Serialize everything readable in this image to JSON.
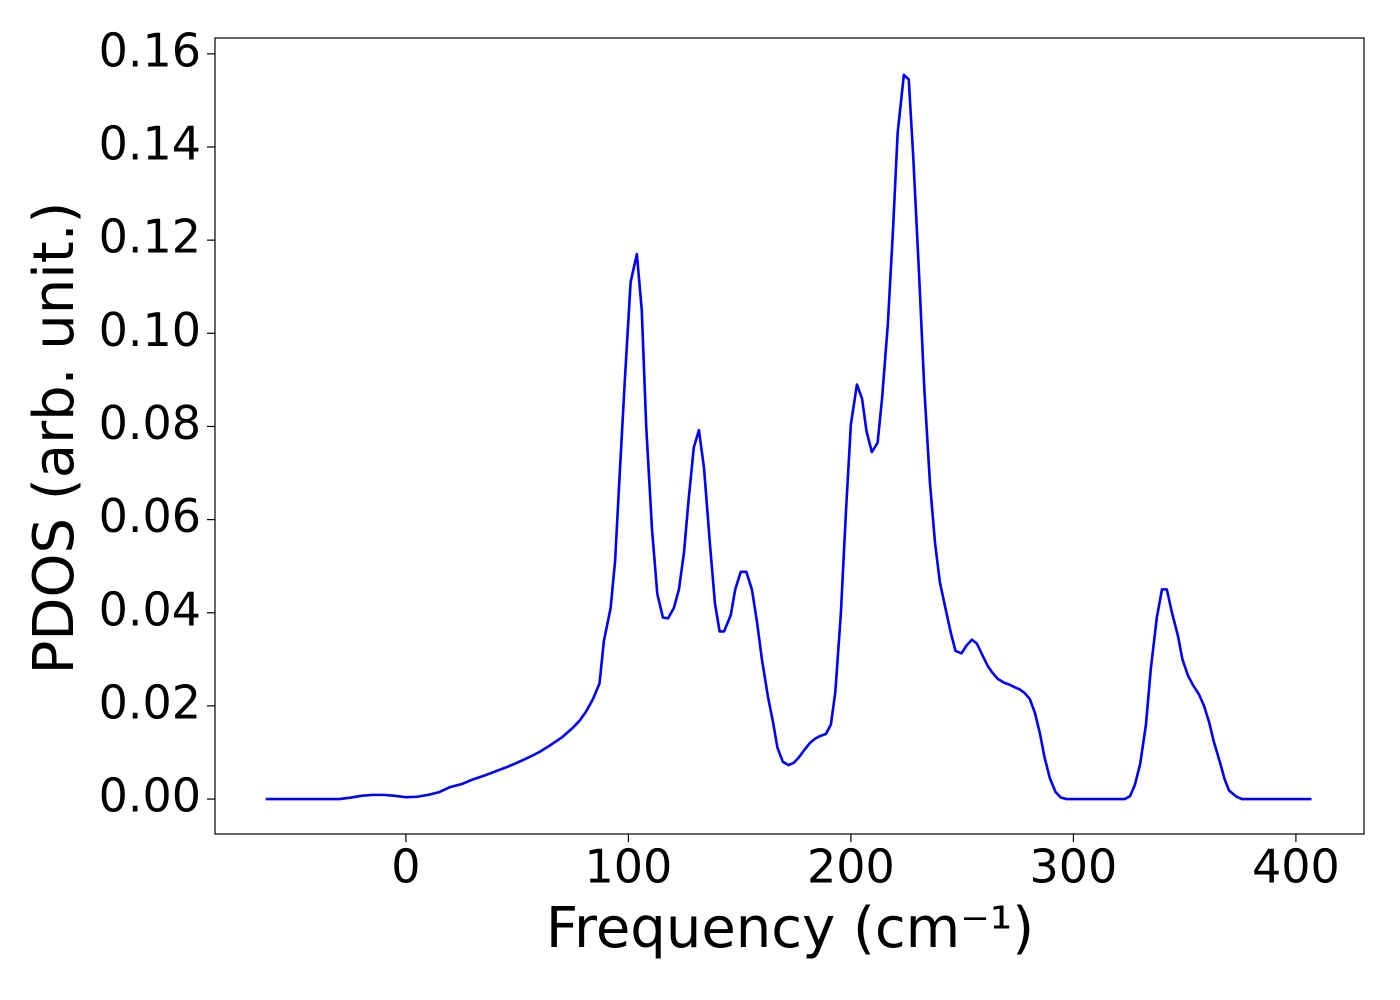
{
  "chart_data": {
    "type": "line",
    "xlabel": "Frequency (cm⁻¹)",
    "ylabel": "PDOS (arb. unit.)",
    "xlim": [
      -85.8,
      430.6
    ],
    "ylim": [
      -0.0075,
      0.1634
    ],
    "xticks": [
      0,
      100,
      200,
      300,
      400
    ],
    "yticks": [
      {
        "value": 0,
        "label": "0.00"
      },
      {
        "value": 0.02,
        "label": "0.02"
      },
      {
        "value": 0.04,
        "label": "0.04"
      },
      {
        "value": 0.06,
        "label": "0.06"
      },
      {
        "value": 0.08,
        "label": "0.08"
      },
      {
        "value": 0.1,
        "label": "0.10"
      },
      {
        "value": 0.12,
        "label": "0.12"
      },
      {
        "value": 0.14,
        "label": "0.14"
      },
      {
        "value": 0.16,
        "label": "0.16"
      }
    ],
    "grid": false,
    "series": [
      {
        "color": "#0000ff",
        "x": [
          -63,
          -30,
          -25,
          -20,
          -15,
          -10,
          -5,
          0,
          5,
          10,
          15,
          20,
          25,
          30,
          35,
          40,
          45,
          50,
          55,
          60,
          65,
          70,
          75,
          78,
          81,
          84,
          87,
          89,
          92,
          94,
          96,
          98.4,
          101,
          103.8,
          106,
          108,
          110.6,
          113,
          115.5,
          117.8,
          120.4,
          122.7,
          125,
          127,
          129.4,
          131.7,
          134,
          136.6,
          138.9,
          141,
          143,
          146,
          148,
          150.5,
          153,
          155.5,
          157.8,
          160,
          162.7,
          165,
          167,
          169.4,
          172,
          174.4,
          176.7,
          179,
          181.5,
          184,
          186,
          188.8,
          191,
          193,
          195.5,
          197.8,
          200,
          202.7,
          205,
          207,
          209.4,
          212,
          214,
          216.6,
          218.9,
          221,
          223.8,
          226,
          228,
          230.6,
          233,
          235.5,
          237.8,
          240,
          242.7,
          245,
          247,
          249.7,
          252,
          254.4,
          256.6,
          259,
          261.6,
          263.8,
          266,
          268.8,
          271.5,
          273.7,
          276,
          278,
          280.4,
          282.7,
          285,
          287,
          289.4,
          292,
          294.4,
          297,
          323,
          325.4,
          327.6,
          330,
          332.6,
          334.8,
          337.5,
          339.8,
          342,
          344.3,
          347,
          349,
          351.5,
          353.7,
          356.4,
          358.7,
          361,
          363,
          365.8,
          368,
          370,
          373,
          375.7,
          407
        ],
        "values": [
          0,
          0,
          0.0003,
          0.0007,
          0.0009,
          0.0009,
          0.0007,
          0.0004,
          0.0005,
          0.0009,
          0.0015,
          0.0026,
          0.0032,
          0.0042,
          0.005,
          0.0059,
          0.0068,
          0.0078,
          0.0089,
          0.0101,
          0.0116,
          0.0132,
          0.0153,
          0.0168,
          0.0188,
          0.0214,
          0.0248,
          0.034,
          0.041,
          0.051,
          0.069,
          0.09,
          0.111,
          0.117,
          0.105,
          0.08,
          0.058,
          0.044,
          0.039,
          0.0388,
          0.041,
          0.045,
          0.053,
          0.064,
          0.0755,
          0.0792,
          0.071,
          0.055,
          0.042,
          0.036,
          0.036,
          0.0395,
          0.045,
          0.0488,
          0.0488,
          0.045,
          0.038,
          0.03,
          0.022,
          0.0165,
          0.011,
          0.008,
          0.0073,
          0.0078,
          0.009,
          0.0105,
          0.012,
          0.013,
          0.0135,
          0.014,
          0.016,
          0.023,
          0.04,
          0.062,
          0.0805,
          0.089,
          0.086,
          0.079,
          0.0745,
          0.0765,
          0.086,
          0.102,
          0.122,
          0.143,
          0.1555,
          0.1545,
          0.138,
          0.113,
          0.088,
          0.068,
          0.055,
          0.0465,
          0.0405,
          0.0355,
          0.0318,
          0.0313,
          0.033,
          0.0342,
          0.0334,
          0.031,
          0.0285,
          0.027,
          0.0258,
          0.025,
          0.0245,
          0.024,
          0.0235,
          0.0228,
          0.0215,
          0.0185,
          0.014,
          0.009,
          0.0045,
          0.0015,
          0.0003,
          0,
          0,
          0.0006,
          0.003,
          0.0075,
          0.016,
          0.028,
          0.039,
          0.045,
          0.045,
          0.04,
          0.035,
          0.03,
          0.0265,
          0.0245,
          0.0225,
          0.02,
          0.0165,
          0.0125,
          0.008,
          0.0042,
          0.0018,
          0.0006,
          0,
          0
        ]
      }
    ]
  }
}
